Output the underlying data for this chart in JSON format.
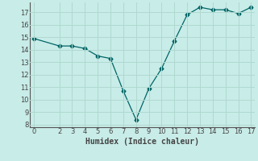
{
  "x": [
    0,
    2,
    3,
    4,
    5,
    6,
    7,
    8,
    9,
    10,
    11,
    12,
    13,
    14,
    15,
    16,
    17
  ],
  "y": [
    14.9,
    14.3,
    14.3,
    14.1,
    13.5,
    13.3,
    10.7,
    8.4,
    10.9,
    12.5,
    14.7,
    16.8,
    17.4,
    17.2,
    17.2,
    16.9,
    17.4
  ],
  "xlim": [
    -0.3,
    17.3
  ],
  "ylim": [
    7.8,
    17.8
  ],
  "yticks": [
    8,
    9,
    10,
    11,
    12,
    13,
    14,
    15,
    16,
    17
  ],
  "xticks": [
    0,
    2,
    3,
    4,
    5,
    6,
    7,
    8,
    9,
    10,
    11,
    12,
    13,
    14,
    15,
    16,
    17
  ],
  "xlabel": "Humidex (Indice chaleur)",
  "line_color": "#006666",
  "marker": "D",
  "markersize": 2.5,
  "bg_color": "#c8ece8",
  "grid_color": "#b0d8d0",
  "tick_color": "#444444",
  "xlabel_fontsize": 7,
  "tick_fontsize": 6
}
